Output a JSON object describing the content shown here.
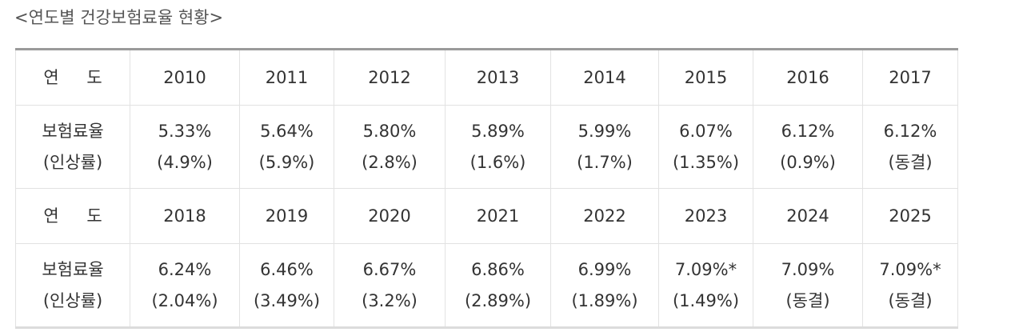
{
  "caption": "<연도별 건강보험료율 현황>",
  "table": {
    "year_label": "연 도",
    "rate_label_line1": "보험료율",
    "rate_label_line2": "(인상률)",
    "blocks": [
      {
        "years": [
          "2010",
          "2011",
          "2012",
          "2013",
          "2014",
          "2015",
          "2016",
          "2017"
        ],
        "rates": [
          {
            "rate": "5.33%",
            "change": "(4.9%)"
          },
          {
            "rate": "5.64%",
            "change": "(5.9%)"
          },
          {
            "rate": "5.80%",
            "change": "(2.8%)"
          },
          {
            "rate": "5.89%",
            "change": "(1.6%)"
          },
          {
            "rate": "5.99%",
            "change": "(1.7%)"
          },
          {
            "rate": "6.07%",
            "change": "(1.35%)"
          },
          {
            "rate": "6.12%",
            "change": "(0.9%)"
          },
          {
            "rate": "6.12%",
            "change": "(동결)"
          }
        ]
      },
      {
        "years": [
          "2018",
          "2019",
          "2020",
          "2021",
          "2022",
          "2023",
          "2024",
          "2025"
        ],
        "rates": [
          {
            "rate": "6.24%",
            "change": "(2.04%)"
          },
          {
            "rate": "6.46%",
            "change": "(3.49%)"
          },
          {
            "rate": "6.67%",
            "change": "(3.2%)"
          },
          {
            "rate": "6.86%",
            "change": "(2.89%)"
          },
          {
            "rate": "6.99%",
            "change": "(1.89%)"
          },
          {
            "rate": "7.09%*",
            "change": "(1.49%)"
          },
          {
            "rate": "7.09%",
            "change": "(동결)"
          },
          {
            "rate": "7.09%*",
            "change": "(동결)"
          }
        ]
      }
    ]
  }
}
